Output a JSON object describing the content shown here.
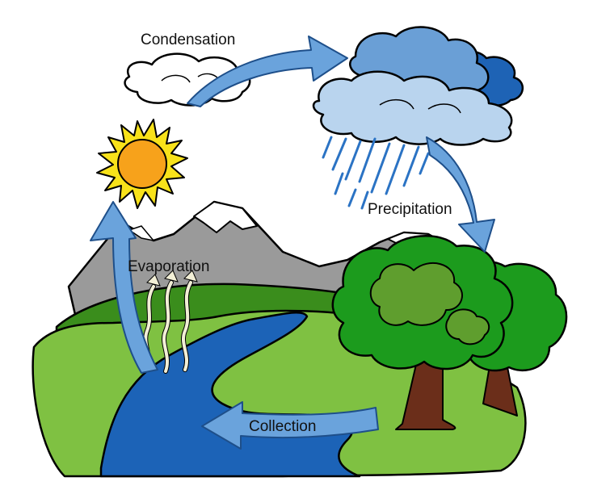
{
  "diagram": {
    "stages": {
      "condensation": "Condensation",
      "precipitation": "Precipitation",
      "evaporation": "Evaporation",
      "collection": "Collection"
    }
  },
  "colors": {
    "arrow": "#6aa3dc",
    "arrow_dark": "#3f78b8",
    "sun": "#f7a21b",
    "sun_rays": "#f8e21a",
    "water": "#1c63b7",
    "grass_light": "#7fc142",
    "grass_dark": "#3a8d1c",
    "mountain": "#9a9a9a",
    "tree_canopy": "#1c9b1d",
    "tree_trunk": "#6b2e1a",
    "rain": "#2b73c4"
  }
}
